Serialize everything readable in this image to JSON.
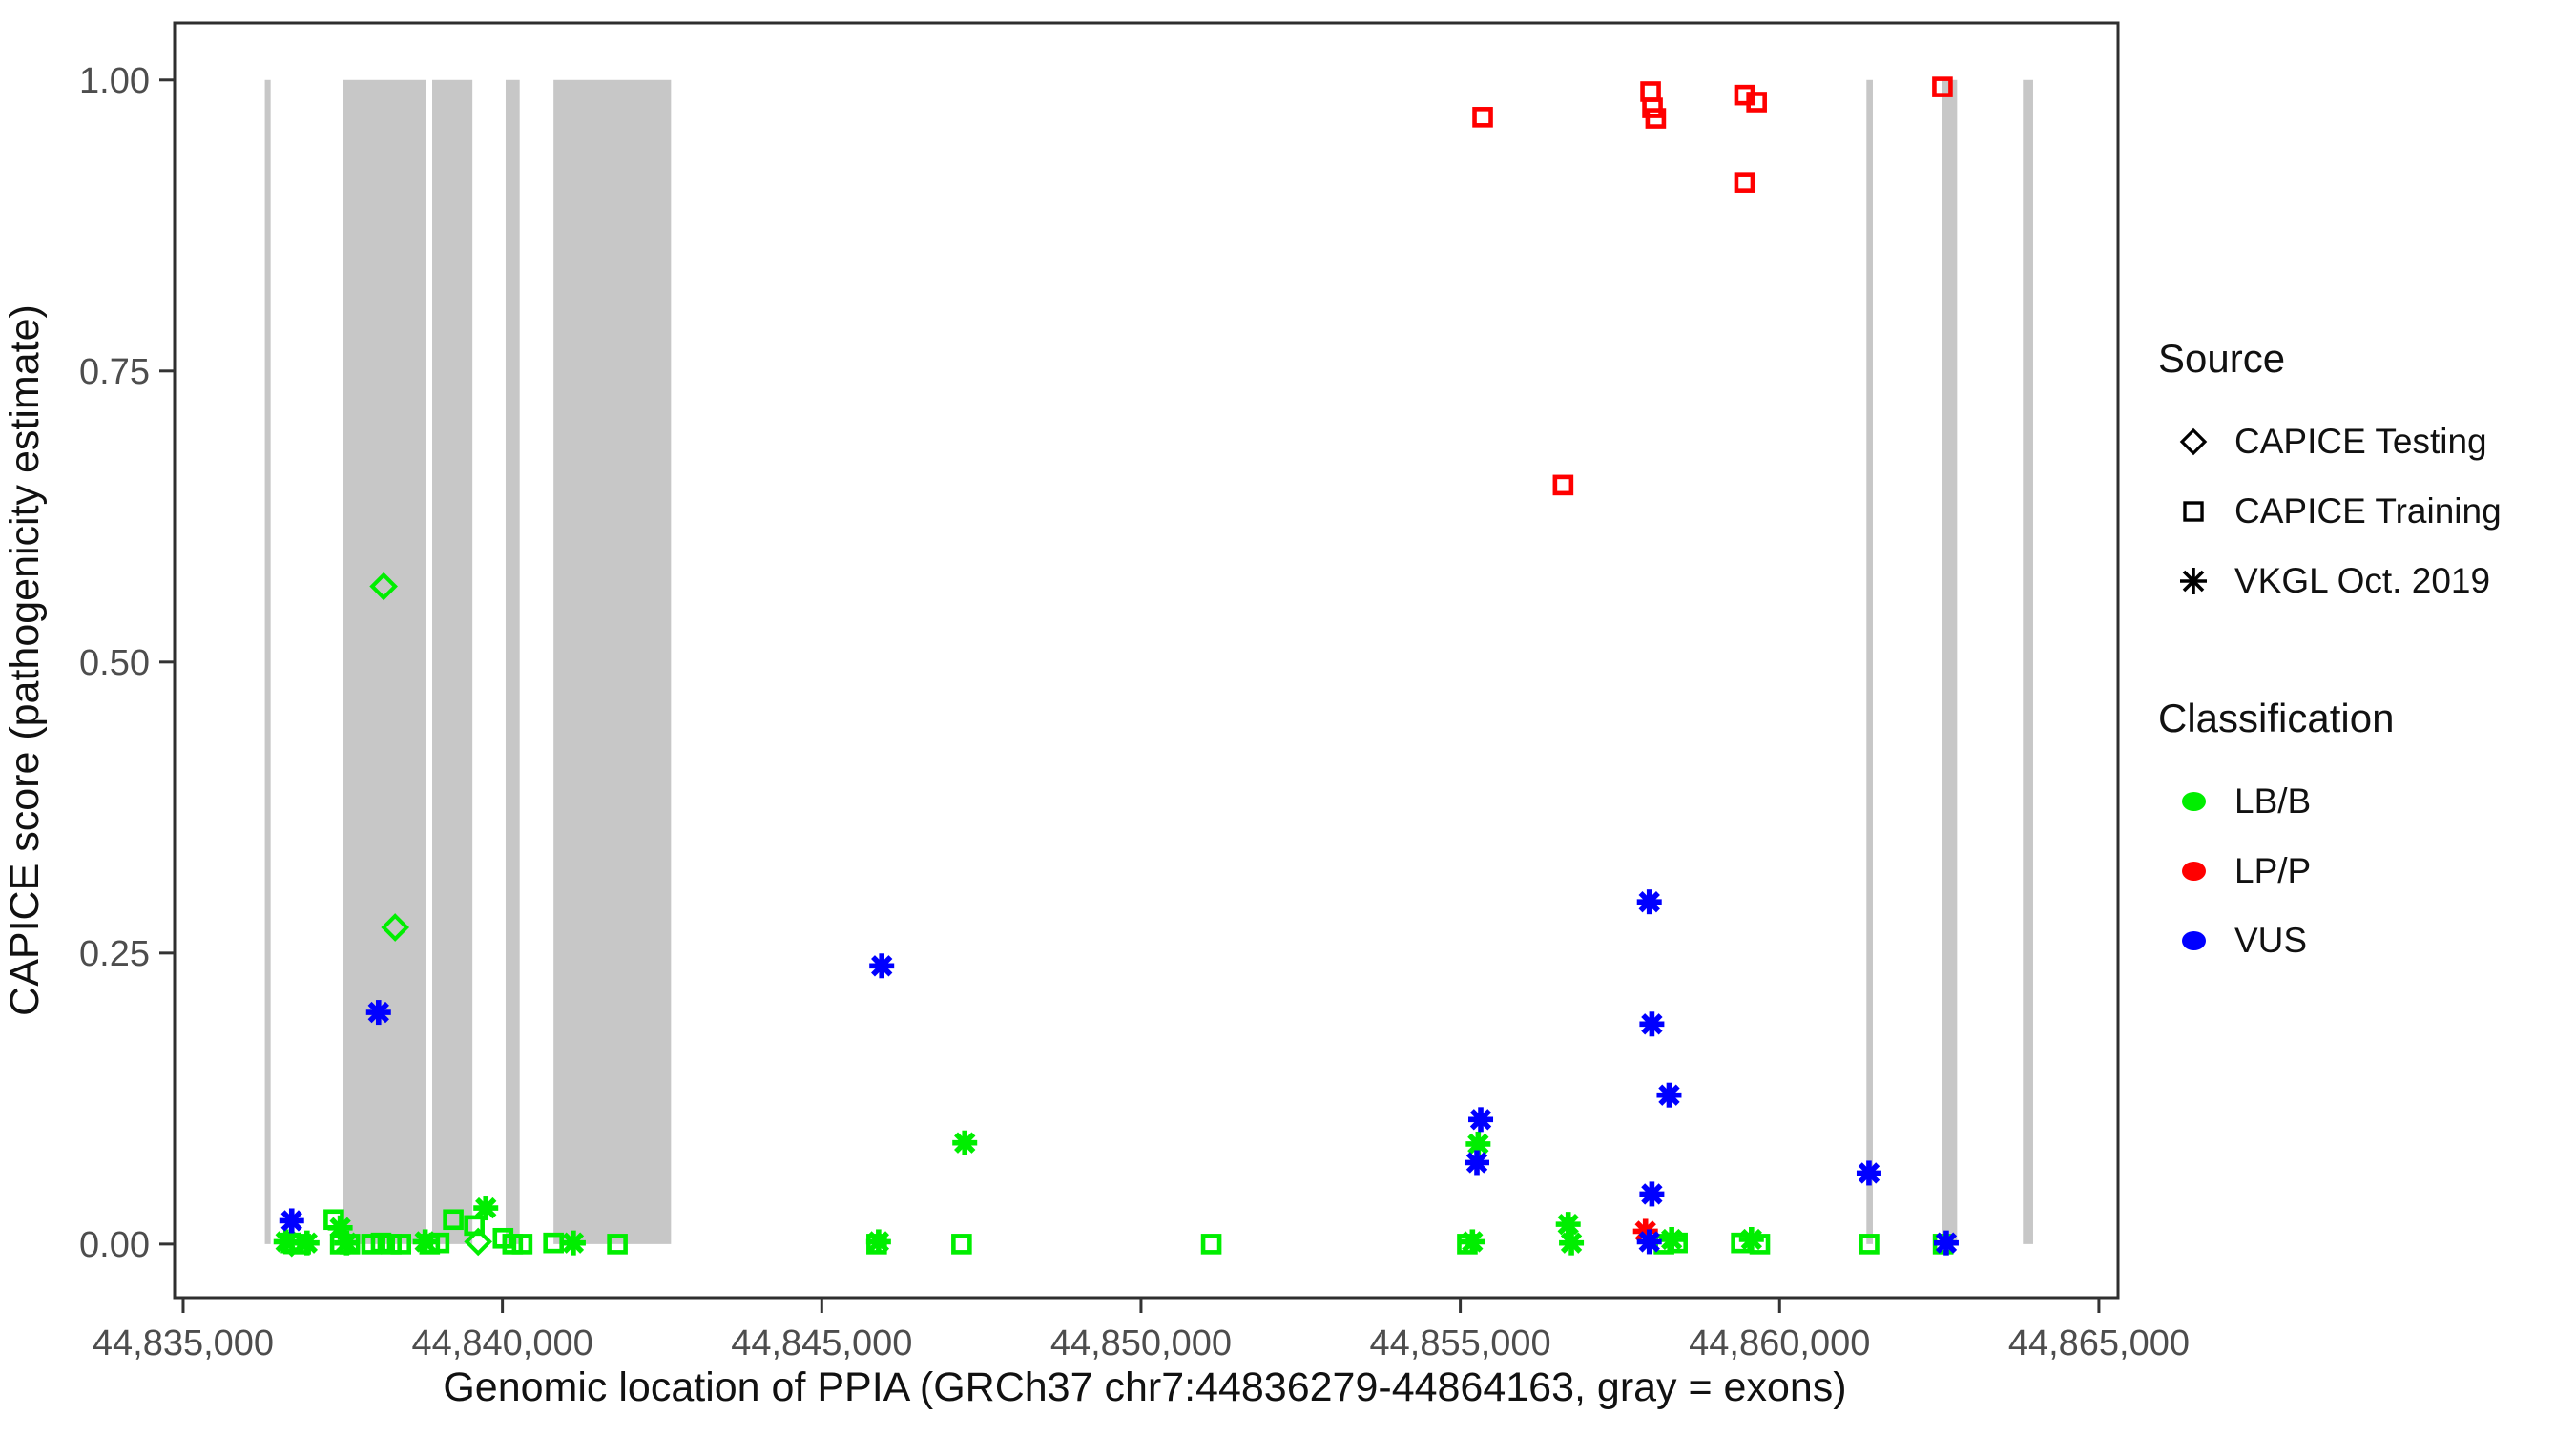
{
  "figure": {
    "x_axis_title": "Genomic location of PPIA (GRCh37 chr7:44836279-44864163, gray = exons)",
    "y_axis_title": "CAPICE score (pathogenicity estimate)"
  },
  "legend": {
    "source_title": "Source",
    "source_items": [
      {
        "label": "CAPICE Testing",
        "marker": "diamond"
      },
      {
        "label": "CAPICE Training",
        "marker": "square"
      },
      {
        "label": "VKGL Oct. 2019",
        "marker": "asterisk"
      }
    ],
    "classification_title": "Classification",
    "classification_items": [
      {
        "label": "LB/B",
        "color": "#00EE00"
      },
      {
        "label": "LP/P",
        "color": "#FF0000"
      },
      {
        "label": "VUS",
        "color": "#0000FF"
      }
    ]
  },
  "chart_data": {
    "type": "scatter",
    "title": "",
    "xlabel": "Genomic location of PPIA (GRCh37 chr7:44836279-44864163, gray = exons)",
    "ylabel": "CAPICE score (pathogenicity estimate)",
    "xlim": [
      44834866,
      44865300
    ],
    "ylim": [
      -0.046,
      1.049
    ],
    "grid": false,
    "legend_position": "right",
    "exon_color": "#C7C7C7",
    "axis_text_color": "#4D4D4D",
    "panel_border_color": "#2F2F2F",
    "x_ticks": [
      {
        "value": 44835000,
        "label": "44,835,000"
      },
      {
        "value": 44840000,
        "label": "44,840,000"
      },
      {
        "value": 44845000,
        "label": "44,845,000"
      },
      {
        "value": 44850000,
        "label": "44,850,000"
      },
      {
        "value": 44855000,
        "label": "44,855,000"
      },
      {
        "value": 44860000,
        "label": "44,860,000"
      },
      {
        "value": 44865000,
        "label": "44,865,000"
      }
    ],
    "y_ticks": [
      {
        "value": 0.0,
        "label": "0.00"
      },
      {
        "value": 0.25,
        "label": "0.25"
      },
      {
        "value": 0.5,
        "label": "0.50"
      },
      {
        "value": 0.75,
        "label": "0.75"
      },
      {
        "value": 1.0,
        "label": "1.00"
      }
    ],
    "exons": [
      [
        44836279,
        44836370
      ],
      [
        44837510,
        44838800
      ],
      [
        44838900,
        44839530
      ],
      [
        44840050,
        44840270
      ],
      [
        44840800,
        44842640
      ],
      [
        44861360,
        44861460
      ],
      [
        44862540,
        44862780
      ],
      [
        44863810,
        44863970
      ]
    ],
    "source_markers": {
      "CAPICE Testing": "diamond",
      "CAPICE Training": "square",
      "VKGL Oct. 2019": "asterisk"
    },
    "classification_colors": {
      "LB/B": "#00EE00",
      "LP/P": "#FF0000",
      "VUS": "#0000FF"
    },
    "points": [
      {
        "x": 44838140,
        "y": 0.565,
        "source": "CAPICE Testing",
        "classification": "LB/B"
      },
      {
        "x": 44838320,
        "y": 0.272,
        "source": "CAPICE Testing",
        "classification": "LB/B"
      },
      {
        "x": 44836700,
        "y": 0.001,
        "source": "CAPICE Testing",
        "classification": "LB/B"
      },
      {
        "x": 44839620,
        "y": 0.002,
        "source": "CAPICE Testing",
        "classification": "LB/B"
      },
      {
        "x": 44836690,
        "y": 0.001,
        "source": "CAPICE Training",
        "classification": "LB/B"
      },
      {
        "x": 44836840,
        "y": 0.0,
        "source": "CAPICE Training",
        "classification": "LB/B"
      },
      {
        "x": 44837360,
        "y": 0.021,
        "source": "CAPICE Training",
        "classification": "LB/B"
      },
      {
        "x": 44837460,
        "y": 0.0,
        "source": "CAPICE Training",
        "classification": "LB/B"
      },
      {
        "x": 44837610,
        "y": 0.0,
        "source": "CAPICE Training",
        "classification": "LB/B"
      },
      {
        "x": 44837950,
        "y": 0.0,
        "source": "CAPICE Training",
        "classification": "LB/B"
      },
      {
        "x": 44838100,
        "y": 0.001,
        "source": "CAPICE Training",
        "classification": "LB/B"
      },
      {
        "x": 44838260,
        "y": 0.0,
        "source": "CAPICE Training",
        "classification": "LB/B"
      },
      {
        "x": 44838410,
        "y": 0.0,
        "source": "CAPICE Training",
        "classification": "LB/B"
      },
      {
        "x": 44838860,
        "y": 0.0,
        "source": "CAPICE Training",
        "classification": "LB/B"
      },
      {
        "x": 44839010,
        "y": 0.001,
        "source": "CAPICE Training",
        "classification": "LB/B"
      },
      {
        "x": 44839230,
        "y": 0.021,
        "source": "CAPICE Training",
        "classification": "LB/B"
      },
      {
        "x": 44839560,
        "y": 0.016,
        "source": "CAPICE Training",
        "classification": "LB/B"
      },
      {
        "x": 44840010,
        "y": 0.005,
        "source": "CAPICE Training",
        "classification": "LB/B"
      },
      {
        "x": 44840160,
        "y": 0.0,
        "source": "CAPICE Training",
        "classification": "LB/B"
      },
      {
        "x": 44840310,
        "y": 0.0,
        "source": "CAPICE Training",
        "classification": "LB/B"
      },
      {
        "x": 44840800,
        "y": 0.001,
        "source": "CAPICE Training",
        "classification": "LB/B"
      },
      {
        "x": 44841800,
        "y": 0.0,
        "source": "CAPICE Training",
        "classification": "LB/B"
      },
      {
        "x": 44845860,
        "y": 0.0,
        "source": "CAPICE Training",
        "classification": "LB/B"
      },
      {
        "x": 44847190,
        "y": 0.0,
        "source": "CAPICE Training",
        "classification": "LB/B"
      },
      {
        "x": 44851100,
        "y": 0.0,
        "source": "CAPICE Training",
        "classification": "LB/B"
      },
      {
        "x": 44855110,
        "y": 0.0,
        "source": "CAPICE Training",
        "classification": "LB/B"
      },
      {
        "x": 44858190,
        "y": 0.0,
        "source": "CAPICE Training",
        "classification": "LB/B"
      },
      {
        "x": 44858400,
        "y": 0.001,
        "source": "CAPICE Training",
        "classification": "LB/B"
      },
      {
        "x": 44859400,
        "y": 0.001,
        "source": "CAPICE Training",
        "classification": "LB/B"
      },
      {
        "x": 44859690,
        "y": 0.0,
        "source": "CAPICE Training",
        "classification": "LB/B"
      },
      {
        "x": 44861400,
        "y": 0.0,
        "source": "CAPICE Training",
        "classification": "LB/B"
      },
      {
        "x": 44862560,
        "y": 0.0,
        "source": "CAPICE Training",
        "classification": "LB/B"
      },
      {
        "x": 44855350,
        "y": 0.968,
        "source": "CAPICE Training",
        "classification": "LP/P"
      },
      {
        "x": 44856610,
        "y": 0.652,
        "source": "CAPICE Training",
        "classification": "LP/P"
      },
      {
        "x": 44857980,
        "y": 0.99,
        "source": "CAPICE Training",
        "classification": "LP/P"
      },
      {
        "x": 44858010,
        "y": 0.976,
        "source": "CAPICE Training",
        "classification": "LP/P"
      },
      {
        "x": 44858060,
        "y": 0.967,
        "source": "CAPICE Training",
        "classification": "LP/P"
      },
      {
        "x": 44859450,
        "y": 0.987,
        "source": "CAPICE Training",
        "classification": "LP/P"
      },
      {
        "x": 44859640,
        "y": 0.981,
        "source": "CAPICE Training",
        "classification": "LP/P"
      },
      {
        "x": 44859450,
        "y": 0.912,
        "source": "CAPICE Training",
        "classification": "LP/P"
      },
      {
        "x": 44862550,
        "y": 0.994,
        "source": "CAPICE Training",
        "classification": "LP/P"
      },
      {
        "x": 44836610,
        "y": 0.002,
        "source": "VKGL Oct. 2019",
        "classification": "LB/B"
      },
      {
        "x": 44836940,
        "y": 0.001,
        "source": "VKGL Oct. 2019",
        "classification": "LB/B"
      },
      {
        "x": 44837460,
        "y": 0.014,
        "source": "VKGL Oct. 2019",
        "classification": "LB/B"
      },
      {
        "x": 44837560,
        "y": 0.001,
        "source": "VKGL Oct. 2019",
        "classification": "LB/B"
      },
      {
        "x": 44838790,
        "y": 0.002,
        "source": "VKGL Oct. 2019",
        "classification": "LB/B"
      },
      {
        "x": 44839740,
        "y": 0.031,
        "source": "VKGL Oct. 2019",
        "classification": "LB/B"
      },
      {
        "x": 44841110,
        "y": 0.001,
        "source": "VKGL Oct. 2019",
        "classification": "LB/B"
      },
      {
        "x": 44845890,
        "y": 0.002,
        "source": "VKGL Oct. 2019",
        "classification": "LB/B"
      },
      {
        "x": 44847240,
        "y": 0.087,
        "source": "VKGL Oct. 2019",
        "classification": "LB/B"
      },
      {
        "x": 44855190,
        "y": 0.002,
        "source": "VKGL Oct. 2019",
        "classification": "LB/B"
      },
      {
        "x": 44855280,
        "y": 0.086,
        "source": "VKGL Oct. 2019",
        "classification": "LB/B"
      },
      {
        "x": 44856690,
        "y": 0.017,
        "source": "VKGL Oct. 2019",
        "classification": "LB/B"
      },
      {
        "x": 44856740,
        "y": 0.001,
        "source": "VKGL Oct. 2019",
        "classification": "LB/B"
      },
      {
        "x": 44858310,
        "y": 0.004,
        "source": "VKGL Oct. 2019",
        "classification": "LB/B"
      },
      {
        "x": 44859560,
        "y": 0.004,
        "source": "VKGL Oct. 2019",
        "classification": "LB/B"
      },
      {
        "x": 44857900,
        "y": 0.011,
        "source": "VKGL Oct. 2019",
        "classification": "LP/P"
      },
      {
        "x": 44836700,
        "y": 0.02,
        "source": "VKGL Oct. 2019",
        "classification": "VUS"
      },
      {
        "x": 44838060,
        "y": 0.199,
        "source": "VKGL Oct. 2019",
        "classification": "VUS"
      },
      {
        "x": 44845940,
        "y": 0.239,
        "source": "VKGL Oct. 2019",
        "classification": "VUS"
      },
      {
        "x": 44855320,
        "y": 0.107,
        "source": "VKGL Oct. 2019",
        "classification": "VUS"
      },
      {
        "x": 44855260,
        "y": 0.07,
        "source": "VKGL Oct. 2019",
        "classification": "VUS"
      },
      {
        "x": 44857960,
        "y": 0.294,
        "source": "VKGL Oct. 2019",
        "classification": "VUS"
      },
      {
        "x": 44858000,
        "y": 0.189,
        "source": "VKGL Oct. 2019",
        "classification": "VUS"
      },
      {
        "x": 44858270,
        "y": 0.128,
        "source": "VKGL Oct. 2019",
        "classification": "VUS"
      },
      {
        "x": 44858000,
        "y": 0.043,
        "source": "VKGL Oct. 2019",
        "classification": "VUS"
      },
      {
        "x": 44857960,
        "y": 0.002,
        "source": "VKGL Oct. 2019",
        "classification": "VUS"
      },
      {
        "x": 44861400,
        "y": 0.061,
        "source": "VKGL Oct. 2019",
        "classification": "VUS"
      },
      {
        "x": 44862610,
        "y": 0.001,
        "source": "VKGL Oct. 2019",
        "classification": "VUS"
      }
    ]
  }
}
